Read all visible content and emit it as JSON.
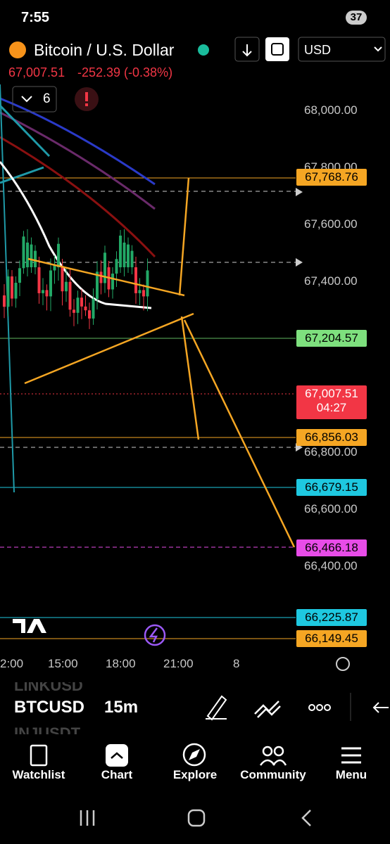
{
  "status_bar": {
    "time": "7:55",
    "battery": "37"
  },
  "header": {
    "title": "Bitcoin / U.S. Dollar",
    "currency": "USD",
    "last_price": "67,007.51",
    "change": "-252.39 (-0.38%)",
    "indicator_count": "6"
  },
  "price_axis": [
    "68,000.00",
    "67,800.00",
    "67,600.00",
    "67,400.00",
    "66,800.00",
    "66,600.00",
    "66,400.00"
  ],
  "price_tags": [
    {
      "label": "67,768.76",
      "color": "#f5a623",
      "text_color": "#000000"
    },
    {
      "label": "67,204.57",
      "color": "#7ee07e",
      "text_color": "#000000"
    },
    {
      "label": "67,007.51",
      "timer": "04:27",
      "color": "#f23645",
      "text_color": "#ffffff"
    },
    {
      "label": "66,856.03",
      "color": "#f5a623",
      "text_color": "#000000"
    },
    {
      "label": "66,679.15",
      "color": "#1ec8e0",
      "text_color": "#000000"
    },
    {
      "label": "66,466.18",
      "color": "#e84ce8",
      "text_color": "#000000"
    },
    {
      "label": "66,225.87",
      "color": "#1ec8e0",
      "text_color": "#000000"
    },
    {
      "label": "66,149.45",
      "color": "#f5a623",
      "text_color": "#000000"
    }
  ],
  "time_axis": [
    "2:00",
    "15:00",
    "18:00",
    "21:00",
    "8"
  ],
  "toolbar": {
    "symbols": [
      "LINKUSD",
      "BTCUSD",
      "INJUSDT"
    ],
    "interval": "15m"
  },
  "nav": [
    "Watchlist",
    "Chart",
    "Explore",
    "Community",
    "Menu"
  ]
}
